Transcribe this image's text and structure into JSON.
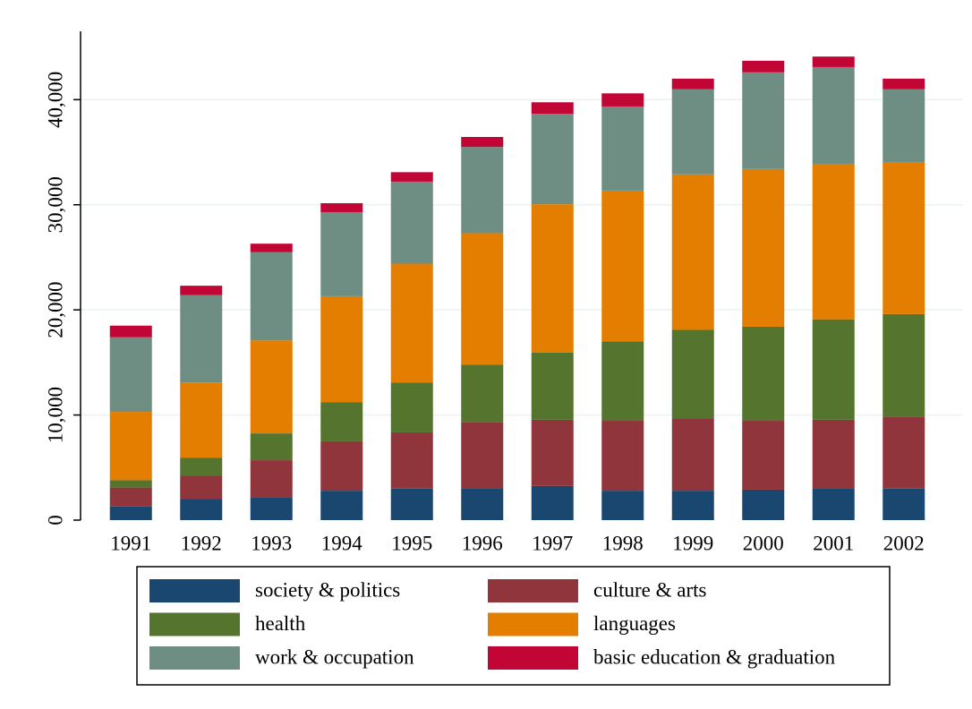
{
  "chart_data": {
    "type": "stacked_bar",
    "categories": [
      "1991",
      "1992",
      "1993",
      "1994",
      "1995",
      "1996",
      "1997",
      "1998",
      "1999",
      "2000",
      "2001",
      "2002"
    ],
    "series": [
      {
        "name": "society & politics",
        "color": "#1a476f",
        "values": [
          1300,
          2000,
          2200,
          2800,
          3000,
          3050,
          3250,
          2800,
          2800,
          2900,
          3050,
          3000
        ]
      },
      {
        "name": "culture & arts",
        "color": "#90353b",
        "values": [
          1800,
          2250,
          3500,
          4700,
          5350,
          6300,
          6300,
          6650,
          6900,
          6550,
          6500,
          6850
        ]
      },
      {
        "name": "health",
        "color": "#55752f",
        "values": [
          700,
          1700,
          2550,
          3700,
          4750,
          5450,
          6400,
          7550,
          8400,
          8950,
          9550,
          9750
        ]
      },
      {
        "name": "languages",
        "color": "#e37e00",
        "values": [
          6500,
          7150,
          8850,
          10100,
          11300,
          12500,
          14100,
          14350,
          14800,
          15000,
          14800,
          14400
        ]
      },
      {
        "name": "work & occupation",
        "color": "#6e8e84",
        "values": [
          7100,
          8300,
          8400,
          8000,
          7800,
          8200,
          8600,
          8000,
          8100,
          9200,
          9200,
          7000
        ]
      },
      {
        "name": "basic education & graduation",
        "color": "#c10534",
        "values": [
          1100,
          900,
          800,
          850,
          900,
          950,
          1100,
          1250,
          1000,
          1100,
          1000,
          1000
        ]
      }
    ],
    "ylim": [
      0,
      46500
    ],
    "yticks": [
      0,
      {
        "value": 10000,
        "label": "10,000"
      },
      {
        "value": 20000,
        "label": "20,000"
      },
      {
        "value": 30000,
        "label": "30,000"
      },
      {
        "value": 40000,
        "label": "40,000"
      }
    ],
    "grid": true
  }
}
